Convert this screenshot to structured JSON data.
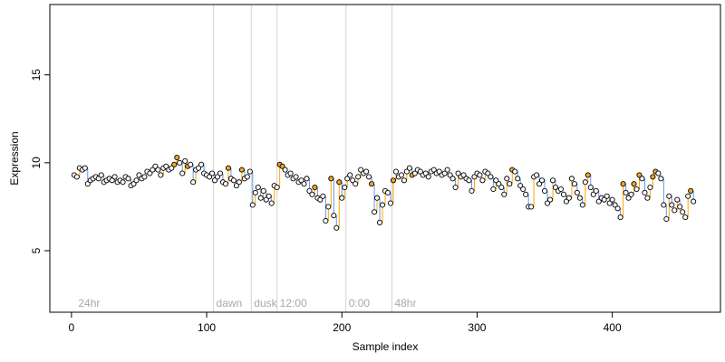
{
  "chart_data": {
    "type": "scatter",
    "title": "",
    "xlabel": "Sample index",
    "ylabel": "Expression",
    "xlim": [
      -16,
      480
    ],
    "ylim": [
      1.5,
      19
    ],
    "x_ticks": [
      0,
      100,
      200,
      300,
      400
    ],
    "y_ticks": [
      5,
      10,
      15
    ],
    "grid": false,
    "markers": [
      {
        "x": 105,
        "label": "dawn"
      },
      {
        "x": 133,
        "label": "dusk"
      },
      {
        "x": 152,
        "label": "12:00"
      },
      {
        "x": 203,
        "label": "0:00"
      },
      {
        "x": 237,
        "label": "48hr"
      }
    ],
    "segments": [
      {
        "x_start": 3,
        "label": "24hr"
      }
    ],
    "colors": {
      "point_fill": "#ffffff",
      "point_stroke": "#000000",
      "highlight_fill": "#f5a623",
      "drop_line_low": "#6495ed",
      "drop_line_high": "#ffa500",
      "marker_line": "#d3d3d3",
      "marker_label": "#a9a9a9"
    },
    "series": [
      {
        "values": [
          [
            2,
            9.3
          ],
          [
            4,
            9.2
          ],
          [
            6,
            9.7
          ],
          [
            8,
            9.6
          ],
          [
            10,
            9.7
          ],
          [
            12,
            8.8
          ],
          [
            14,
            9.0
          ],
          [
            16,
            9.1
          ],
          [
            18,
            9.2
          ],
          [
            20,
            9.1
          ],
          [
            22,
            9.3
          ],
          [
            24,
            8.9
          ],
          [
            26,
            9.0
          ],
          [
            28,
            9.1
          ],
          [
            30,
            9.0
          ],
          [
            32,
            9.2
          ],
          [
            34,
            8.9
          ],
          [
            36,
            9.0
          ],
          [
            38,
            8.9
          ],
          [
            40,
            9.2
          ],
          [
            42,
            9.1
          ],
          [
            44,
            8.7
          ],
          [
            46,
            8.8
          ],
          [
            48,
            9.0
          ],
          [
            50,
            9.3
          ],
          [
            52,
            9.1
          ],
          [
            54,
            9.2
          ],
          [
            56,
            9.5
          ],
          [
            58,
            9.4
          ],
          [
            60,
            9.6
          ],
          [
            62,
            9.8
          ],
          [
            64,
            9.6
          ],
          [
            66,
            9.3
          ],
          [
            68,
            9.7
          ],
          [
            70,
            9.8
          ],
          [
            72,
            9.6
          ],
          [
            74,
            9.7
          ],
          [
            76,
            9.9
          ],
          [
            78,
            10.3
          ],
          [
            80,
            10.0
          ],
          [
            82,
            9.4
          ],
          [
            84,
            10.1
          ],
          [
            86,
            9.8
          ],
          [
            88,
            9.9
          ],
          [
            90,
            8.9
          ],
          [
            92,
            9.6
          ],
          [
            94,
            9.7
          ],
          [
            96,
            9.9
          ],
          [
            98,
            9.4
          ],
          [
            100,
            9.3
          ],
          [
            102,
            9.2
          ],
          [
            104,
            9.4
          ],
          [
            106,
            9.0
          ],
          [
            108,
            9.2
          ],
          [
            110,
            9.4
          ],
          [
            112,
            8.9
          ],
          [
            114,
            8.8
          ],
          [
            116,
            9.7
          ],
          [
            118,
            9.1
          ],
          [
            120,
            9.0
          ],
          [
            122,
            8.7
          ],
          [
            124,
            8.9
          ],
          [
            126,
            9.6
          ],
          [
            128,
            9.1
          ],
          [
            130,
            9.2
          ],
          [
            132,
            9.5
          ],
          [
            134,
            7.6
          ],
          [
            136,
            8.3
          ],
          [
            138,
            8.6
          ],
          [
            140,
            8.0
          ],
          [
            142,
            8.4
          ],
          [
            144,
            7.9
          ],
          [
            146,
            8.1
          ],
          [
            148,
            7.7
          ],
          [
            150,
            8.7
          ],
          [
            152,
            8.6
          ],
          [
            154,
            9.9
          ],
          [
            156,
            9.8
          ],
          [
            158,
            9.6
          ],
          [
            160,
            9.3
          ],
          [
            162,
            9.4
          ],
          [
            164,
            9.1
          ],
          [
            166,
            9.2
          ],
          [
            168,
            8.9
          ],
          [
            170,
            9.0
          ],
          [
            172,
            8.8
          ],
          [
            174,
            9.1
          ],
          [
            176,
            8.4
          ],
          [
            178,
            8.2
          ],
          [
            180,
            8.6
          ],
          [
            182,
            8.0
          ],
          [
            184,
            7.9
          ],
          [
            186,
            8.1
          ],
          [
            188,
            6.7
          ],
          [
            190,
            7.5
          ],
          [
            192,
            9.1
          ],
          [
            194,
            7.0
          ],
          [
            196,
            6.3
          ],
          [
            198,
            8.9
          ],
          [
            200,
            8.0
          ],
          [
            202,
            8.6
          ],
          [
            204,
            9.1
          ],
          [
            206,
            9.3
          ],
          [
            208,
            9.0
          ],
          [
            210,
            8.8
          ],
          [
            212,
            9.2
          ],
          [
            214,
            9.6
          ],
          [
            216,
            9.4
          ],
          [
            218,
            9.5
          ],
          [
            220,
            9.2
          ],
          [
            222,
            8.8
          ],
          [
            224,
            7.2
          ],
          [
            226,
            8.0
          ],
          [
            228,
            6.6
          ],
          [
            230,
            7.6
          ],
          [
            232,
            8.4
          ],
          [
            234,
            8.3
          ],
          [
            236,
            7.7
          ],
          [
            238,
            9.0
          ],
          [
            240,
            9.5
          ],
          [
            242,
            9.2
          ],
          [
            244,
            9.3
          ],
          [
            246,
            9.0
          ],
          [
            248,
            9.5
          ],
          [
            250,
            9.7
          ],
          [
            252,
            9.3
          ],
          [
            254,
            9.4
          ],
          [
            256,
            9.6
          ],
          [
            258,
            9.5
          ],
          [
            260,
            9.3
          ],
          [
            262,
            9.4
          ],
          [
            264,
            9.2
          ],
          [
            266,
            9.5
          ],
          [
            268,
            9.6
          ],
          [
            270,
            9.4
          ],
          [
            272,
            9.5
          ],
          [
            274,
            9.3
          ],
          [
            276,
            9.4
          ],
          [
            278,
            9.6
          ],
          [
            280,
            9.3
          ],
          [
            282,
            9.1
          ],
          [
            284,
            8.6
          ],
          [
            286,
            9.4
          ],
          [
            288,
            9.2
          ],
          [
            290,
            9.3
          ],
          [
            292,
            9.1
          ],
          [
            294,
            9.0
          ],
          [
            296,
            8.4
          ],
          [
            298,
            9.2
          ],
          [
            300,
            9.4
          ],
          [
            302,
            9.3
          ],
          [
            304,
            9.0
          ],
          [
            306,
            9.5
          ],
          [
            308,
            9.4
          ],
          [
            310,
            9.2
          ],
          [
            312,
            8.5
          ],
          [
            314,
            9.0
          ],
          [
            316,
            8.8
          ],
          [
            318,
            8.6
          ],
          [
            320,
            8.2
          ],
          [
            322,
            9.1
          ],
          [
            324,
            8.8
          ],
          [
            326,
            9.6
          ],
          [
            328,
            9.5
          ],
          [
            330,
            9.1
          ],
          [
            332,
            8.7
          ],
          [
            334,
            8.5
          ],
          [
            336,
            8.2
          ],
          [
            338,
            7.5
          ],
          [
            340,
            7.5
          ],
          [
            342,
            9.2
          ],
          [
            344,
            9.3
          ],
          [
            346,
            8.8
          ],
          [
            348,
            9.0
          ],
          [
            350,
            8.4
          ],
          [
            352,
            7.7
          ],
          [
            354,
            7.9
          ],
          [
            356,
            9.0
          ],
          [
            358,
            8.6
          ],
          [
            360,
            8.4
          ],
          [
            362,
            8.5
          ],
          [
            364,
            8.2
          ],
          [
            366,
            7.8
          ],
          [
            368,
            8.0
          ],
          [
            370,
            9.1
          ],
          [
            372,
            8.8
          ],
          [
            374,
            8.3
          ],
          [
            376,
            8.0
          ],
          [
            378,
            7.6
          ],
          [
            380,
            8.9
          ],
          [
            382,
            9.3
          ],
          [
            384,
            8.6
          ],
          [
            386,
            8.2
          ],
          [
            388,
            8.4
          ],
          [
            390,
            7.8
          ],
          [
            392,
            8.0
          ],
          [
            394,
            7.9
          ],
          [
            396,
            8.1
          ],
          [
            398,
            7.7
          ],
          [
            400,
            7.9
          ],
          [
            402,
            7.6
          ],
          [
            404,
            7.4
          ],
          [
            406,
            6.9
          ],
          [
            408,
            8.8
          ],
          [
            410,
            8.3
          ],
          [
            412,
            8.0
          ],
          [
            414,
            8.2
          ],
          [
            416,
            8.8
          ],
          [
            418,
            8.5
          ],
          [
            420,
            9.3
          ],
          [
            422,
            9.1
          ],
          [
            424,
            8.3
          ],
          [
            426,
            8.0
          ],
          [
            428,
            8.6
          ],
          [
            430,
            9.2
          ],
          [
            432,
            9.5
          ],
          [
            434,
            9.4
          ],
          [
            436,
            9.1
          ],
          [
            438,
            7.6
          ],
          [
            440,
            6.8
          ],
          [
            442,
            8.1
          ],
          [
            444,
            7.6
          ],
          [
            446,
            7.3
          ],
          [
            448,
            7.9
          ],
          [
            450,
            7.5
          ],
          [
            452,
            7.2
          ],
          [
            454,
            6.9
          ],
          [
            456,
            8.1
          ],
          [
            458,
            8.4
          ],
          [
            460,
            7.8
          ]
        ]
      }
    ],
    "highlighted_indices": [
      76,
      78,
      86,
      116,
      126,
      154,
      156,
      180,
      192,
      198,
      222,
      238,
      252,
      326,
      382,
      408,
      416,
      420,
      430,
      432,
      458
    ]
  }
}
